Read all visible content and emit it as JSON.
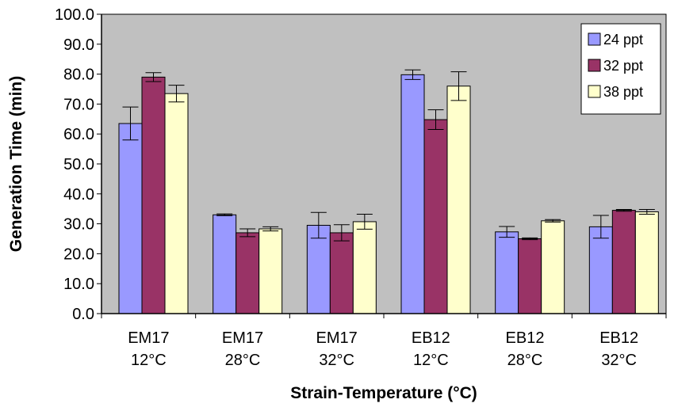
{
  "chart_data": {
    "type": "bar",
    "title": "",
    "xlabel": "Strain-Temperature (°C)",
    "ylabel": "Generation Time (min)",
    "ylim": [
      0,
      100
    ],
    "ytick_step": 10,
    "ytick_labels": [
      "0.0",
      "10.0",
      "20.0",
      "30.0",
      "40.0",
      "50.0",
      "60.0",
      "70.0",
      "80.0",
      "90.0",
      "100.0"
    ],
    "grid": false,
    "legend_position": "top-right",
    "categories": [
      {
        "strain": "EM17",
        "temp": "12°C"
      },
      {
        "strain": "EM17",
        "temp": "28°C"
      },
      {
        "strain": "EM17",
        "temp": "32°C"
      },
      {
        "strain": "EB12",
        "temp": "12°C"
      },
      {
        "strain": "EB12",
        "temp": "28°C"
      },
      {
        "strain": "EB12",
        "temp": "32°C"
      }
    ],
    "series": [
      {
        "name": "24 ppt",
        "color": "#9999ff",
        "values": [
          63.5,
          33.0,
          29.5,
          79.8,
          27.3,
          29.0
        ],
        "errors": [
          5.5,
          0.3,
          4.3,
          1.6,
          1.8,
          3.8
        ]
      },
      {
        "name": "32 ppt",
        "color": "#993366",
        "values": [
          79.0,
          27.0,
          27.0,
          64.8,
          25.0,
          34.5
        ],
        "errors": [
          1.5,
          1.3,
          2.7,
          3.3,
          0.3,
          0.3
        ]
      },
      {
        "name": "38 ppt",
        "color": "#ffffcc",
        "values": [
          73.5,
          28.3,
          30.7,
          76.0,
          31.0,
          34.0
        ],
        "errors": [
          2.8,
          0.7,
          2.5,
          4.8,
          0.4,
          0.8
        ]
      }
    ],
    "plot_background": "#c0c0c0"
  }
}
